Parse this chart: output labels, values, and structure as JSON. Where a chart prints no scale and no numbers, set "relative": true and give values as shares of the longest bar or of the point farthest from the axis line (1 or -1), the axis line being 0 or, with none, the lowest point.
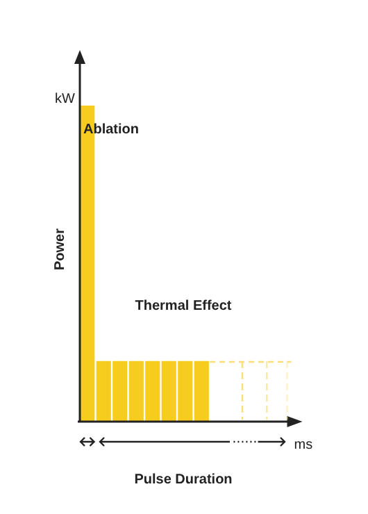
{
  "chart_data": {
    "type": "bar",
    "relative": true,
    "tick_labels": false,
    "categories": [
      null,
      null,
      null,
      null,
      null,
      null,
      null,
      null
    ],
    "values": [
      1,
      0.19,
      0.19,
      0.19,
      0.19,
      0.19,
      0.19,
      0.19
    ],
    "color": "#f6cd1e",
    "xlabel": "Pulse Duration",
    "ylabel": "Power",
    "annotations": [
      "Ablation",
      "Thermal Effect",
      "kW",
      "ms"
    ]
  }
}
